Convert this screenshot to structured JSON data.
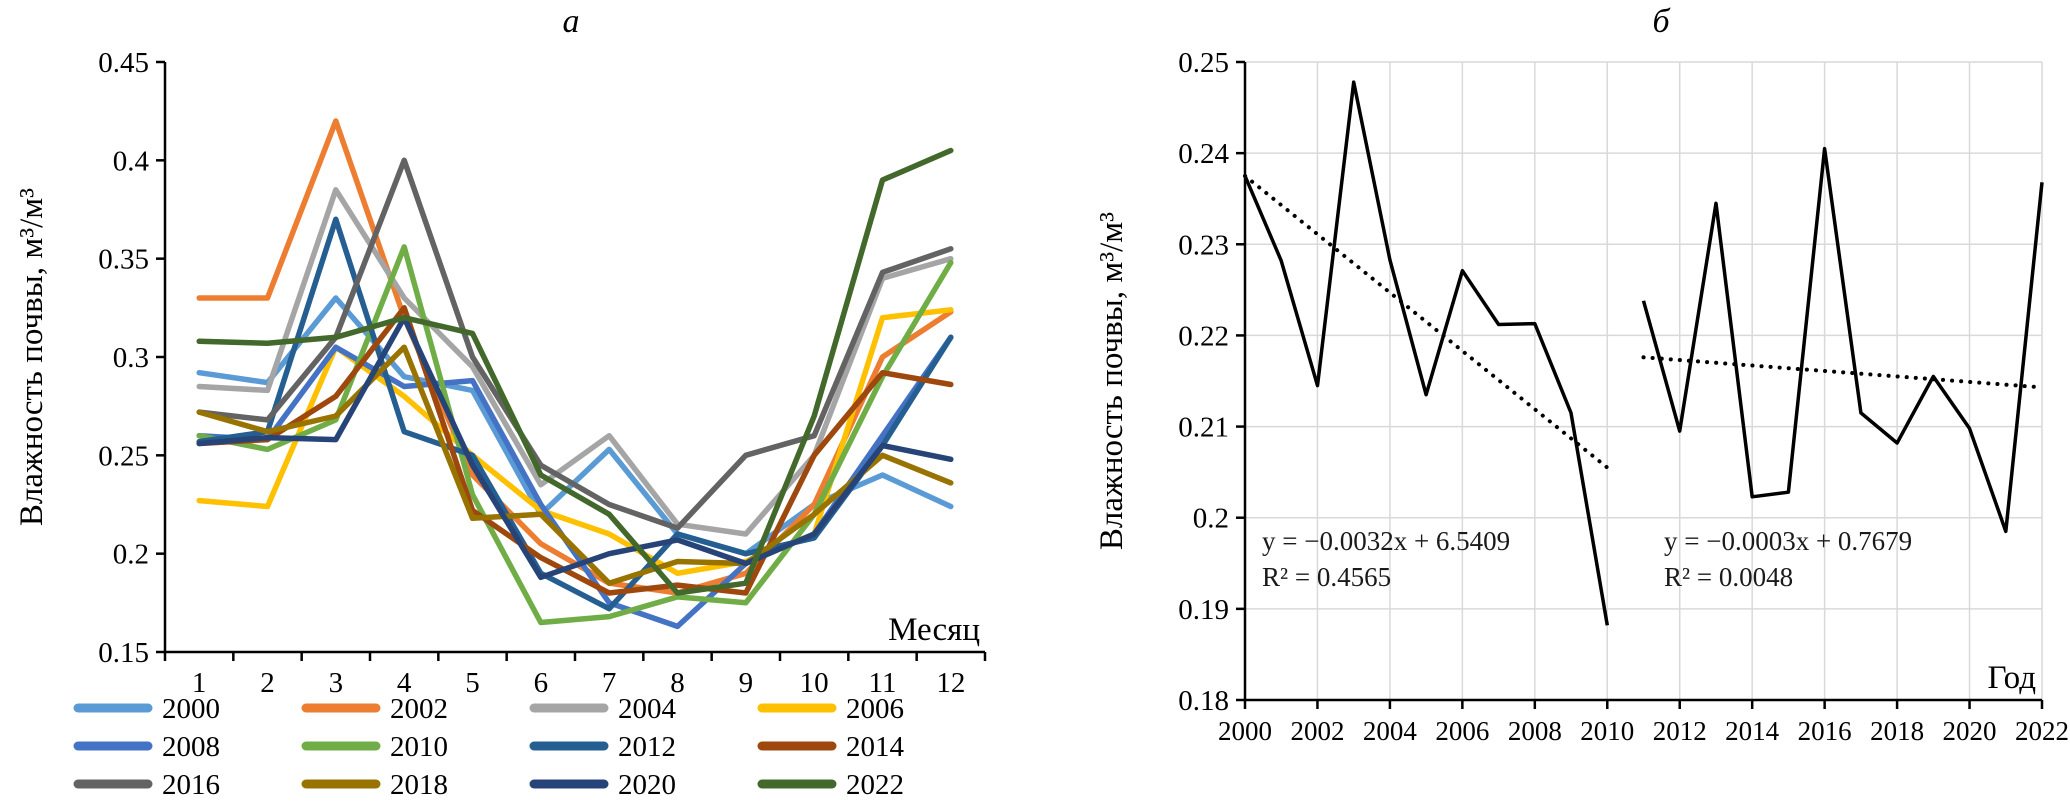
{
  "figure_a": {
    "title": "а",
    "y_axis_label": "Влажность почвы, м³/м³",
    "x_axis_label": "Месяц",
    "chart_data": {
      "type": "line",
      "x": [
        1,
        2,
        3,
        4,
        5,
        6,
        7,
        8,
        9,
        10,
        11,
        12
      ],
      "x_tick_labels": [
        "1",
        "2",
        "3",
        "4",
        "5",
        "6",
        "7",
        "8",
        "9",
        "10",
        "11",
        "12"
      ],
      "ylim": [
        0.15,
        0.45
      ],
      "y_ticks": [
        0.15,
        0.2,
        0.25,
        0.3,
        0.35,
        0.4,
        0.45
      ],
      "y_tick_labels": [
        "0.15",
        "0.2",
        "0.25",
        "0.3",
        "0.35",
        "0.4",
        "0.45"
      ],
      "series": [
        {
          "name": "2000",
          "color": "#5B9BD5",
          "values": [
            0.292,
            0.287,
            0.33,
            0.29,
            0.283,
            0.22,
            0.253,
            0.21,
            0.2,
            0.225,
            0.24,
            0.224
          ]
        },
        {
          "name": "2002",
          "color": "#ED7D31",
          "values": [
            0.33,
            0.33,
            0.42,
            0.32,
            0.24,
            0.205,
            0.185,
            0.18,
            0.19,
            0.225,
            0.3,
            0.323
          ]
        },
        {
          "name": "2004",
          "color": "#A5A5A5",
          "values": [
            0.285,
            0.283,
            0.385,
            0.33,
            0.295,
            0.235,
            0.26,
            0.215,
            0.21,
            0.25,
            0.34,
            0.35
          ]
        },
        {
          "name": "2006",
          "color": "#FFC000",
          "values": [
            0.227,
            0.224,
            0.305,
            0.28,
            0.25,
            0.222,
            0.21,
            0.19,
            0.196,
            0.21,
            0.32,
            0.324
          ]
        },
        {
          "name": "2008",
          "color": "#4472C4",
          "values": [
            0.26,
            0.258,
            0.305,
            0.285,
            0.288,
            0.225,
            0.175,
            0.163,
            0.195,
            0.21,
            0.26,
            0.31
          ]
        },
        {
          "name": "2010",
          "color": "#70AD47",
          "values": [
            0.26,
            0.253,
            0.268,
            0.356,
            0.23,
            0.165,
            0.168,
            0.178,
            0.175,
            0.22,
            0.29,
            0.348
          ]
        },
        {
          "name": "2012",
          "color": "#255E91",
          "values": [
            0.257,
            0.262,
            0.37,
            0.262,
            0.25,
            0.19,
            0.172,
            0.21,
            0.2,
            0.208,
            0.255,
            0.31
          ]
        },
        {
          "name": "2014",
          "color": "#9E480E",
          "values": [
            0.256,
            0.258,
            0.28,
            0.325,
            0.222,
            0.198,
            0.18,
            0.184,
            0.18,
            0.25,
            0.292,
            0.286
          ]
        },
        {
          "name": "2016",
          "color": "#636363",
          "values": [
            0.272,
            0.268,
            0.31,
            0.4,
            0.3,
            0.245,
            0.225,
            0.213,
            0.25,
            0.26,
            0.343,
            0.355
          ]
        },
        {
          "name": "2018",
          "color": "#997300",
          "values": [
            0.272,
            0.262,
            0.27,
            0.305,
            0.218,
            0.22,
            0.185,
            0.196,
            0.195,
            0.22,
            0.25,
            0.236
          ]
        },
        {
          "name": "2020",
          "color": "#264478",
          "values": [
            0.256,
            0.259,
            0.258,
            0.32,
            0.245,
            0.188,
            0.2,
            0.207,
            0.195,
            0.21,
            0.255,
            0.248
          ]
        },
        {
          "name": "2022",
          "color": "#43682B",
          "values": [
            0.308,
            0.307,
            0.31,
            0.32,
            0.312,
            0.24,
            0.22,
            0.18,
            0.185,
            0.27,
            0.39,
            0.405
          ]
        }
      ]
    }
  },
  "figure_b": {
    "title": "б",
    "y_axis_label": "Влажность почвы, м³/м³",
    "x_axis_label": "Год",
    "chart_data": {
      "type": "line",
      "xlim": [
        2000,
        2022
      ],
      "x_ticks": [
        2000,
        2002,
        2004,
        2006,
        2008,
        2010,
        2012,
        2014,
        2016,
        2018,
        2020,
        2022
      ],
      "x_tick_labels": [
        "2000",
        "2002",
        "2004",
        "2006",
        "2008",
        "2010",
        "2012",
        "2014",
        "2016",
        "2018",
        "2020",
        "2022"
      ],
      "ylim": [
        0.18,
        0.25
      ],
      "y_ticks": [
        0.18,
        0.19,
        0.2,
        0.21,
        0.22,
        0.23,
        0.24,
        0.25
      ],
      "y_tick_labels": [
        "0.18",
        "0.19",
        "0.2",
        "0.21",
        "0.22",
        "0.23",
        "0.24",
        "0.25"
      ],
      "line_color": "#000000",
      "grid_color": "#D9D9D9",
      "segments": [
        {
          "name": "2000-2010",
          "years": [
            2000,
            2001,
            2002,
            2003,
            2004,
            2005,
            2006,
            2007,
            2008,
            2009,
            2010
          ],
          "values": [
            0.2375,
            0.2282,
            0.2145,
            0.2478,
            0.2283,
            0.2135,
            0.2271,
            0.2212,
            0.2213,
            0.2115,
            0.1882
          ]
        },
        {
          "name": "2011-2022",
          "years": [
            2011,
            2012,
            2013,
            2014,
            2015,
            2016,
            2017,
            2018,
            2019,
            2020,
            2021,
            2022
          ],
          "values": [
            0.2238,
            0.2095,
            0.2345,
            0.2023,
            0.2028,
            0.2405,
            0.2115,
            0.2082,
            0.2155,
            0.2098,
            0.1985,
            0.2368
          ]
        }
      ],
      "trendlines": [
        {
          "x1": 2000,
          "y1": 0.2375,
          "x2": 2010,
          "y2": 0.2055,
          "style": "dotted"
        },
        {
          "x1": 2011,
          "y1": 0.2176,
          "x2": 2022,
          "y2": 0.2143,
          "style": "dotted"
        }
      ]
    },
    "annotations": [
      {
        "line1": "y  = −0.0032x + 6.5409",
        "line2": "R² = 0.4565"
      },
      {
        "line1": "y  = −0.0003x + 0.7679",
        "line2": "R² = 0.0048"
      }
    ]
  }
}
